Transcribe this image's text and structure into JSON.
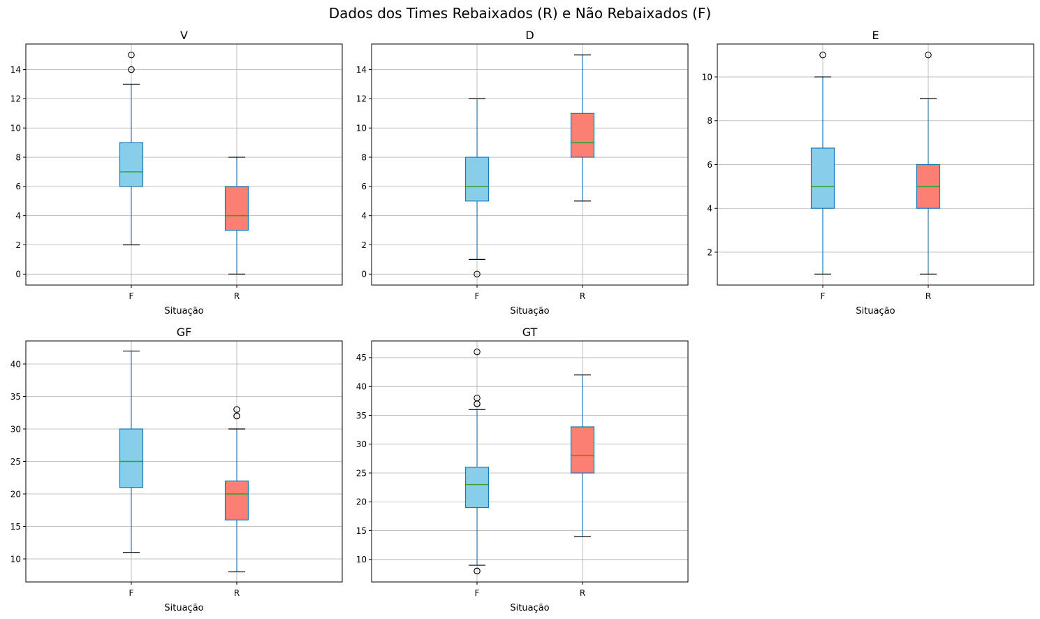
{
  "figure": {
    "suptitle": "Dados dos Times Rebaixados (R) e Não Rebaixados (F)"
  },
  "colors": {
    "F": "#87ceeb",
    "R": "#fa8072",
    "box_edge": "#1f77b4",
    "whisker": "#1f77b4",
    "median": "#2ca02c",
    "grid": "#b0b0b0"
  },
  "chart_data": [
    {
      "type": "box",
      "title": "V",
      "xlabel": "Situação",
      "categories": [
        "F",
        "R"
      ],
      "ylim": [
        -0.75,
        15.75
      ],
      "yticks": [
        0,
        2,
        4,
        6,
        8,
        10,
        12,
        14
      ],
      "ytick_labels": [
        "0",
        "2",
        "4",
        "6",
        "8",
        "10",
        "12",
        "14"
      ],
      "grid": true,
      "boxes": [
        {
          "category": "F",
          "whislo": 2,
          "q1": 6,
          "med": 7,
          "q3": 9,
          "whishi": 13,
          "fliers": [
            14,
            15
          ]
        },
        {
          "category": "R",
          "whislo": 0,
          "q1": 3,
          "med": 4,
          "q3": 6,
          "whishi": 8,
          "fliers": []
        }
      ]
    },
    {
      "type": "box",
      "title": "D",
      "xlabel": "Situação",
      "categories": [
        "F",
        "R"
      ],
      "ylim": [
        -0.75,
        15.75
      ],
      "yticks": [
        0,
        2,
        4,
        6,
        8,
        10,
        12,
        14
      ],
      "ytick_labels": [
        "0",
        "2",
        "4",
        "6",
        "8",
        "10",
        "12",
        "14"
      ],
      "grid": true,
      "boxes": [
        {
          "category": "F",
          "whislo": 1,
          "q1": 5,
          "med": 6,
          "q3": 8,
          "whishi": 12,
          "fliers": [
            0
          ]
        },
        {
          "category": "R",
          "whislo": 5,
          "q1": 8,
          "med": 9,
          "q3": 11,
          "whishi": 15,
          "fliers": []
        }
      ]
    },
    {
      "type": "box",
      "title": "E",
      "xlabel": "Situação",
      "categories": [
        "F",
        "R"
      ],
      "ylim": [
        0.5,
        11.5
      ],
      "yticks": [
        2,
        4,
        6,
        8,
        10
      ],
      "ytick_labels": [
        "2",
        "4",
        "6",
        "8",
        "10"
      ],
      "grid": true,
      "boxes": [
        {
          "category": "F",
          "whislo": 1,
          "q1": 4,
          "med": 5,
          "q3": 6.75,
          "whishi": 10,
          "fliers": [
            11
          ]
        },
        {
          "category": "R",
          "whislo": 1,
          "q1": 4,
          "med": 5,
          "q3": 6,
          "whishi": 9,
          "fliers": [
            11
          ]
        }
      ]
    },
    {
      "type": "box",
      "title": "GF",
      "xlabel": "Situação",
      "categories": [
        "F",
        "R"
      ],
      "ylim": [
        6.45,
        43.55
      ],
      "yticks": [
        10,
        15,
        20,
        25,
        30,
        35,
        40
      ],
      "ytick_labels": [
        "10",
        "15",
        "20",
        "25",
        "30",
        "35",
        "40"
      ],
      "grid": true,
      "boxes": [
        {
          "category": "F",
          "whislo": 11,
          "q1": 21,
          "med": 25,
          "q3": 30,
          "whishi": 42,
          "fliers": []
        },
        {
          "category": "R",
          "whislo": 8,
          "q1": 16,
          "med": 20,
          "q3": 22,
          "whishi": 30,
          "fliers": [
            32,
            32,
            33
          ]
        }
      ]
    },
    {
      "type": "box",
      "title": "GT",
      "xlabel": "Situação",
      "categories": [
        "F",
        "R"
      ],
      "ylim": [
        6.1,
        47.9
      ],
      "yticks": [
        10,
        15,
        20,
        25,
        30,
        35,
        40,
        45
      ],
      "ytick_labels": [
        "10",
        "15",
        "20",
        "25",
        "30",
        "35",
        "40",
        "45"
      ],
      "grid": true,
      "boxes": [
        {
          "category": "F",
          "whislo": 9,
          "q1": 19,
          "med": 23,
          "q3": 26,
          "whishi": 36,
          "fliers": [
            8,
            8,
            37,
            37,
            38,
            46
          ]
        },
        {
          "category": "R",
          "whislo": 14,
          "q1": 25,
          "med": 28,
          "q3": 33,
          "whishi": 42,
          "fliers": []
        }
      ]
    }
  ]
}
